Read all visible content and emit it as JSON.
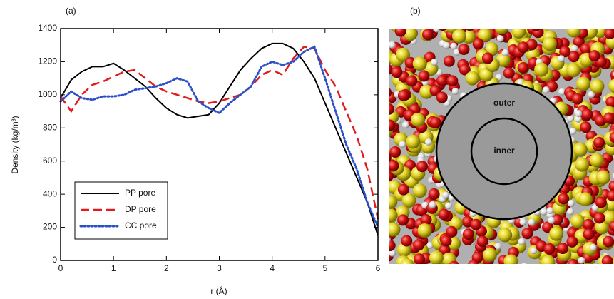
{
  "chart_data": {
    "type": "line",
    "panel_label": "(a)",
    "xlabel": "r (Å)",
    "ylabel": "Density (kg/m³)",
    "x": [
      0,
      0.2,
      0.4,
      0.6,
      0.8,
      1.0,
      1.2,
      1.4,
      1.6,
      1.8,
      2.0,
      2.2,
      2.4,
      2.6,
      2.8,
      3.0,
      3.2,
      3.4,
      3.6,
      3.8,
      4.0,
      4.2,
      4.4,
      4.6,
      4.8,
      5.0,
      5.2,
      5.4,
      5.6,
      5.8,
      6.0
    ],
    "series": [
      {
        "name": "PP pore",
        "color": "#000000",
        "dash": "solid",
        "values": [
          980,
          1090,
          1140,
          1170,
          1170,
          1190,
          1150,
          1100,
          1050,
          980,
          920,
          880,
          860,
          870,
          880,
          950,
          1050,
          1150,
          1220,
          1280,
          1310,
          1310,
          1280,
          1200,
          1100,
          950,
          800,
          650,
          500,
          350,
          150
        ]
      },
      {
        "name": "DP pore",
        "color": "#e31a1c",
        "dash": "dashed",
        "values": [
          990,
          900,
          1000,
          1060,
          1080,
          1110,
          1140,
          1150,
          1100,
          1050,
          1020,
          1000,
          980,
          960,
          950,
          960,
          980,
          1000,
          1050,
          1120,
          1150,
          1120,
          1220,
          1290,
          1280,
          1150,
          1050,
          900,
          750,
          550,
          250
        ]
      },
      {
        "name": "CC pore",
        "color": "#2b4fc7",
        "dash": "dotted",
        "values": [
          960,
          1020,
          980,
          970,
          990,
          990,
          1000,
          1030,
          1040,
          1050,
          1070,
          1100,
          1080,
          960,
          920,
          890,
          950,
          1000,
          1050,
          1170,
          1200,
          1180,
          1200,
          1260,
          1290,
          1100,
          900,
          700,
          550,
          350,
          200
        ]
      }
    ],
    "xlim": [
      0,
      6
    ],
    "xticks": [
      0,
      1,
      2,
      3,
      4,
      5,
      6
    ],
    "ylim": [
      0,
      1400
    ],
    "yticks": [
      0,
      200,
      400,
      600,
      800,
      1000,
      1200,
      1400
    ],
    "legend": "lower left"
  },
  "image_panel": {
    "label": "(b)",
    "outer": "outer",
    "inner": "inner"
  }
}
